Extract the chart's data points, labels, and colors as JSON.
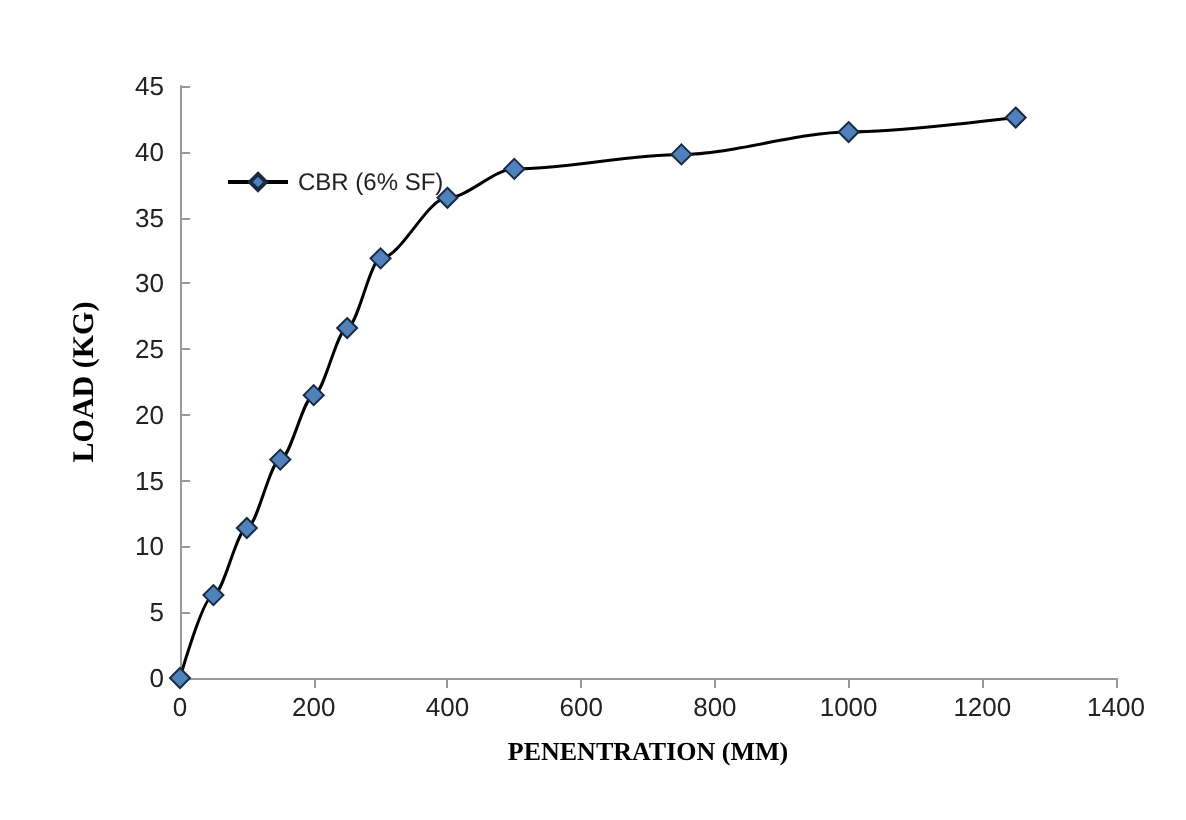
{
  "chart_data": {
    "type": "line",
    "xlabel": "PENENTRATION (MM)",
    "ylabel": "LOAD (KG)",
    "x": [
      0,
      50,
      100,
      150,
      200,
      250,
      300,
      400,
      500,
      750,
      1000,
      1250
    ],
    "series": [
      {
        "name": "CBR (6% SF)",
        "color": "#4f81bd",
        "values": [
          0,
          6.3,
          11.4,
          16.6,
          21.5,
          26.6,
          31.9,
          36.5,
          38.7,
          39.8,
          41.5,
          42.6
        ]
      }
    ],
    "xlim": [
      0,
      1400
    ],
    "xticks": [
      0,
      200,
      400,
      600,
      800,
      1000,
      1200,
      1400
    ],
    "ylim": [
      0,
      45
    ],
    "yticks": [
      0,
      5,
      10,
      15,
      20,
      25,
      30,
      35,
      40,
      45
    ],
    "grid": false,
    "legend": "top left",
    "marker": "diamond",
    "line_style": "solid"
  }
}
